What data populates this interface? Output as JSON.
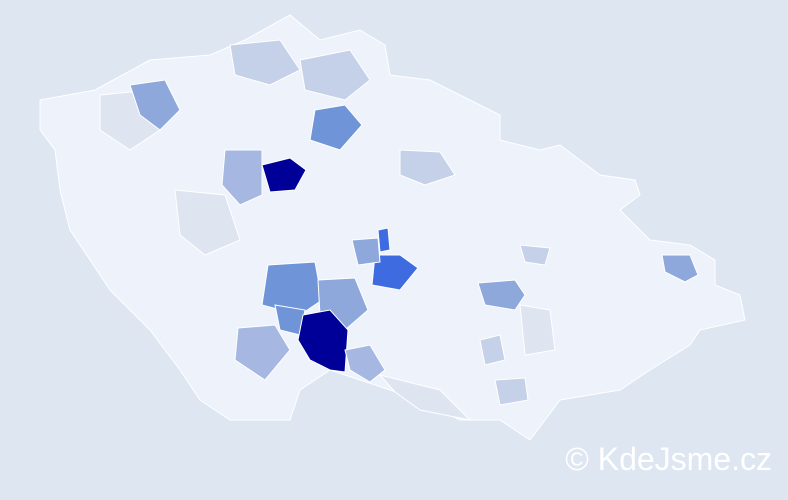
{
  "watermark": "© KdeJsme.cz"
}
